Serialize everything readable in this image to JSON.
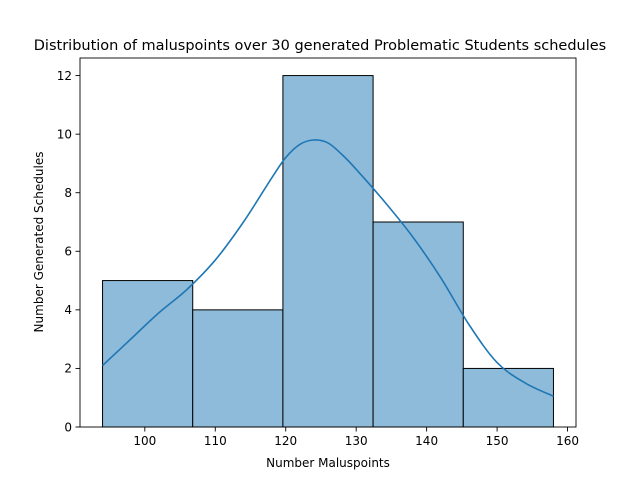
{
  "chart_data": {
    "type": "bar",
    "title": "Distribution of maluspoints over 30 generated Problematic Students schedules",
    "xlabel": "Number Maluspoints",
    "ylabel": "Number Generated Schedules",
    "bins": [
      {
        "x0": 94,
        "x1": 106.8,
        "count": 5
      },
      {
        "x0": 106.8,
        "x1": 119.6,
        "count": 4
      },
      {
        "x0": 119.6,
        "x1": 132.4,
        "count": 12
      },
      {
        "x0": 132.4,
        "x1": 145.2,
        "count": 7
      },
      {
        "x0": 145.2,
        "x1": 158,
        "count": 2
      }
    ],
    "kde": {
      "name": "",
      "x": [
        94,
        98,
        102,
        106,
        110,
        114,
        118,
        120,
        122,
        124,
        126,
        128,
        130,
        134,
        138,
        142,
        146,
        150,
        154,
        158
      ],
      "y": [
        2.1,
        3.0,
        3.9,
        4.7,
        5.7,
        7.0,
        8.5,
        9.2,
        9.65,
        9.8,
        9.7,
        9.3,
        8.8,
        7.7,
        6.5,
        5.1,
        3.5,
        2.2,
        1.5,
        1.05
      ]
    },
    "xticks": [
      100,
      110,
      120,
      130,
      140,
      150,
      160
    ],
    "yticks": [
      0,
      2,
      4,
      6,
      8,
      10,
      12
    ],
    "xlim": [
      90.8,
      161.2
    ],
    "ylim": [
      0,
      12.6
    ],
    "grid": false,
    "colors": {
      "bar_fill": "#8fbbda",
      "bar_edge": "#000000",
      "kde_line": "#1f77b4"
    }
  }
}
